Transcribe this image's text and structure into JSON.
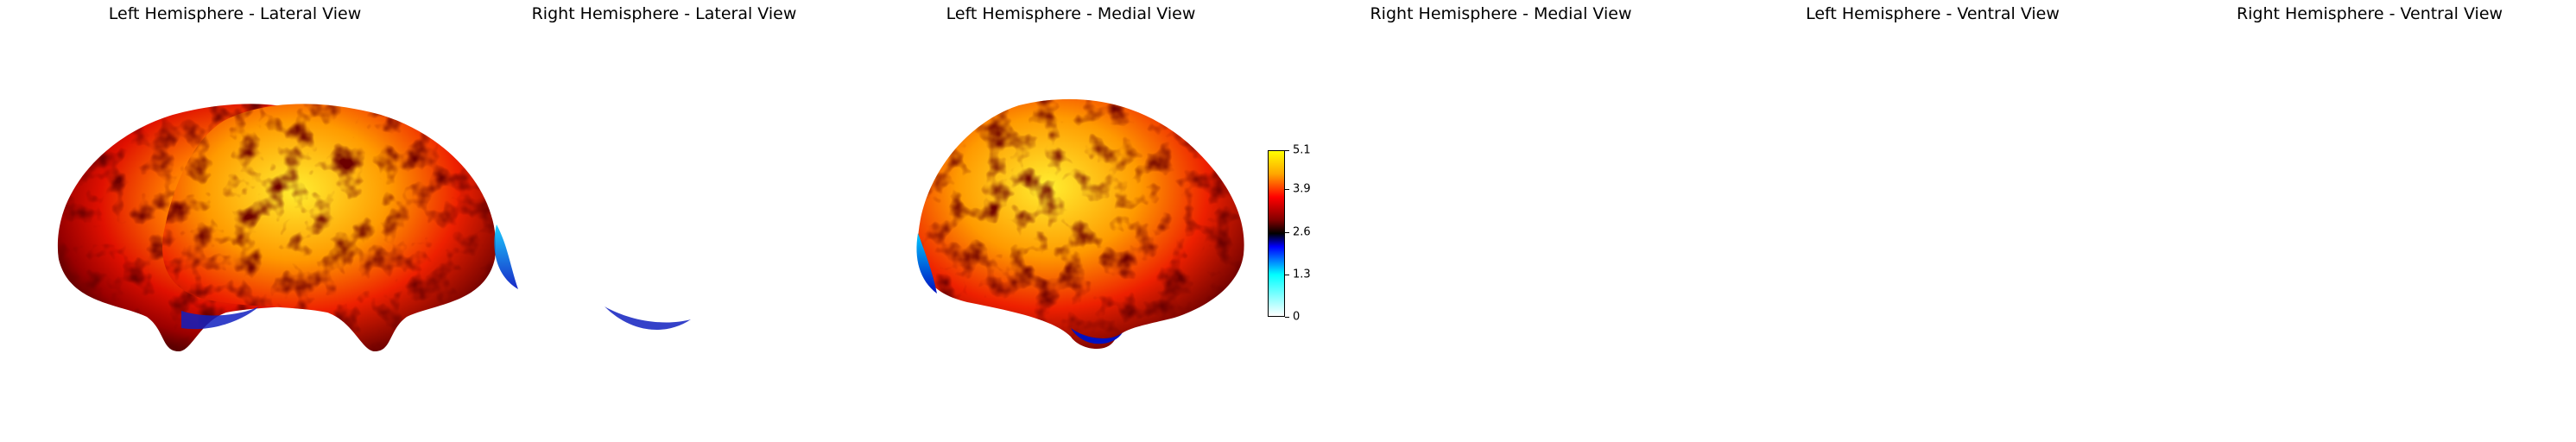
{
  "panels": [
    {
      "title": "Left Hemisphere - Lateral View"
    },
    {
      "title": "Right Hemisphere - Lateral View"
    },
    {
      "title": "Left Hemisphere - Medial View"
    },
    {
      "title": "Right Hemisphere - Medial View"
    },
    {
      "title": "Left Hemisphere - Ventral View"
    },
    {
      "title": "Right Hemisphere - Ventral View"
    }
  ],
  "colorbar": {
    "ticks": [
      "5.1",
      "3.9",
      "2.6",
      "1.3",
      "0"
    ],
    "min": 0,
    "max": 5.1,
    "colormap": [
      "#ffffff",
      "#00ffff",
      "#0000ff",
      "#000000",
      "#800000",
      "#ff0000",
      "#ffa500",
      "#ffff00"
    ]
  }
}
